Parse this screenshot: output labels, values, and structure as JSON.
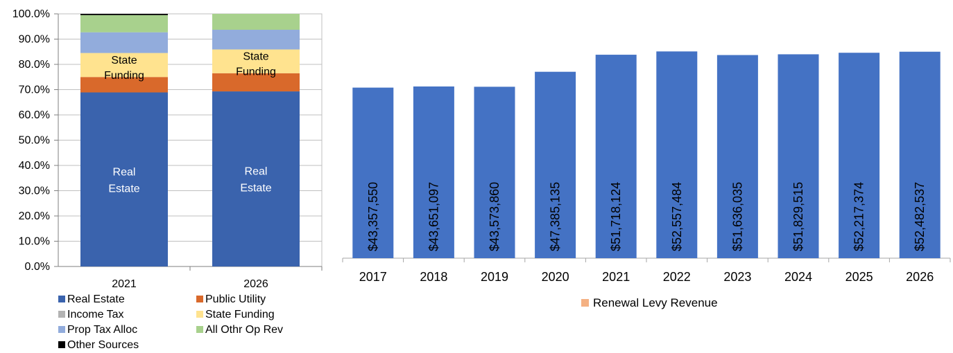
{
  "chart_data": [
    {
      "type": "bar",
      "stacked": true,
      "categories": [
        "2021",
        "2026"
      ],
      "ylim": [
        0,
        100
      ],
      "yticks": [
        "0.0%",
        "10.0%",
        "20.0%",
        "30.0%",
        "40.0%",
        "50.0%",
        "60.0%",
        "70.0%",
        "80.0%",
        "90.0%",
        "100.0%"
      ],
      "series": [
        {
          "name": "Real Estate",
          "color": "#3a63ad",
          "values": [
            68.9,
            69.3
          ]
        },
        {
          "name": "Public Utility",
          "color": "#d9692b",
          "values": [
            6.1,
            7.2
          ]
        },
        {
          "name": "Income Tax",
          "color": "#b3b3b3",
          "values": [
            0,
            0
          ]
        },
        {
          "name": "State Funding",
          "color": "#ffe38f",
          "values": [
            9.5,
            9.4
          ]
        },
        {
          "name": "Prop Tax Alloc",
          "color": "#92acdc",
          "values": [
            8.2,
            7.8
          ]
        },
        {
          "name": "All Othr Op Rev",
          "color": "#a8d18d",
          "values": [
            6.8,
            6.3
          ]
        },
        {
          "name": "Other Sources",
          "color": "#000000",
          "values": [
            0.5,
            0
          ]
        }
      ],
      "segment_labels": {
        "real_estate": [
          "Real",
          "Estate"
        ],
        "state_funding": [
          "State",
          "Funding"
        ]
      },
      "legend_position": "bottom",
      "grid": true
    },
    {
      "type": "bar",
      "categories": [
        "2017",
        "2018",
        "2019",
        "2020",
        "2021",
        "2022",
        "2023",
        "2024",
        "2025",
        "2026"
      ],
      "values": [
        43357550,
        43651097,
        43573860,
        47385135,
        51718124,
        52557484,
        51636035,
        51829515,
        52217374,
        52482537
      ],
      "data_labels": [
        "$43,357,550",
        "$43,651,097",
        "$43,573,860",
        "$47,385,135",
        "$51,718,124",
        "$52,557,484",
        "$51,636,035",
        "$51,829,515",
        "$52,217,374",
        "$52,482,537"
      ],
      "bar_color": "#4472c4",
      "legend": {
        "name": "Renewal Levy Revenue",
        "color": "#f4b183"
      },
      "legend_position": "bottom",
      "grid": false
    }
  ]
}
